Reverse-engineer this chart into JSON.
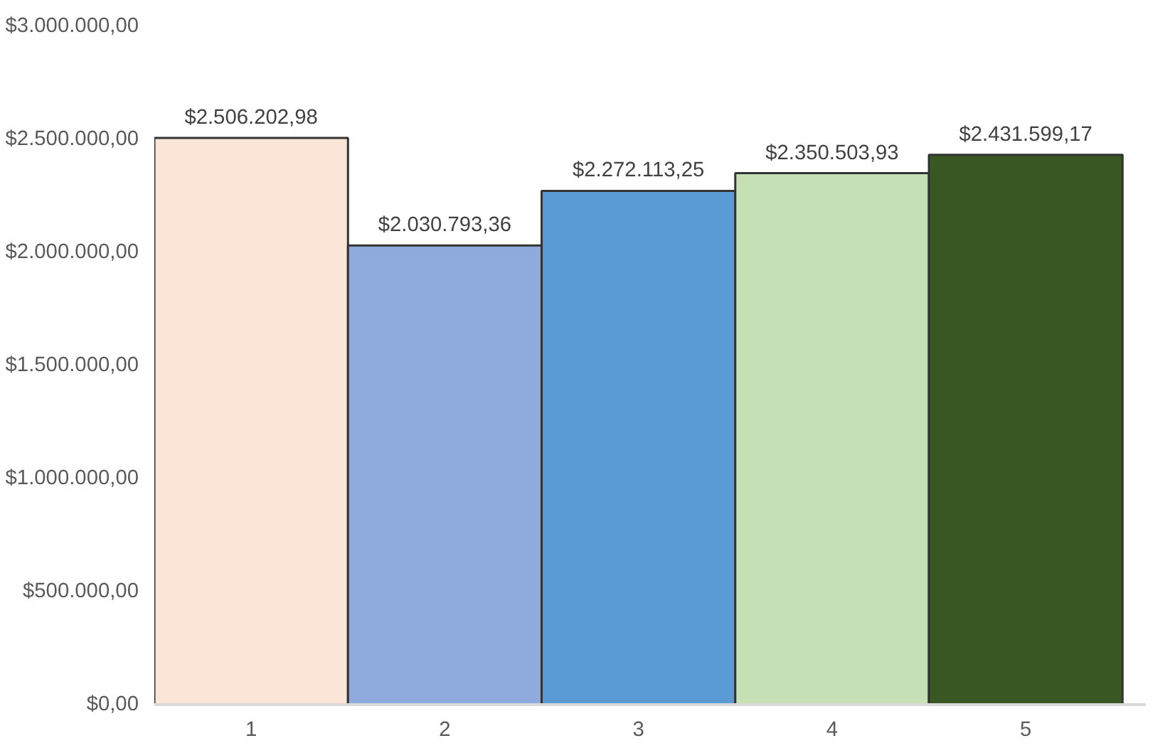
{
  "chart_data": {
    "type": "bar",
    "categories": [
      "1",
      "2",
      "3",
      "4",
      "5"
    ],
    "values": [
      2506202.98,
      2030793.36,
      2272113.25,
      2350503.93,
      2431599.17
    ],
    "colors": [
      "#fbe5d6",
      "#8faadc",
      "#5b9bd5",
      "#c5e0b4",
      "#385723"
    ],
    "value_labels": [
      "$2.506.202,98",
      "$2.030.793,36",
      "$2.272.113,25",
      "$2.350.503,93",
      "$2.431.599,17"
    ],
    "ylim": [
      0,
      3000000
    ],
    "yticks": [
      {
        "value": 0,
        "label": "$0,00"
      },
      {
        "value": 500000,
        "label": "$500.000,00"
      },
      {
        "value": 1000000,
        "label": "$1.000.000,00"
      },
      {
        "value": 1500000,
        "label": "$1.500.000,00"
      },
      {
        "value": 2000000,
        "label": "$2.000.000,00"
      },
      {
        "value": 2500000,
        "label": "$2.500.000,00"
      },
      {
        "value": 3000000,
        "label": "$3.000.000,00"
      }
    ],
    "grid": false
  }
}
